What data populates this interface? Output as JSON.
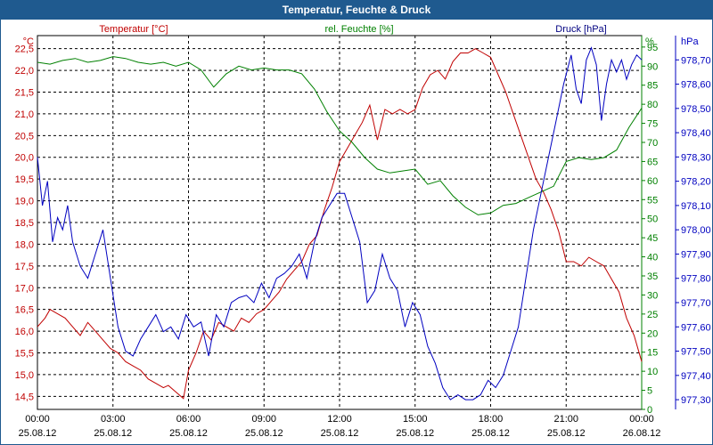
{
  "window": {
    "title": "Temperatur, Feuchte & Druck"
  },
  "chart_data": {
    "type": "line",
    "title": "Temperatur, Feuchte & Druck",
    "colors": {
      "temperature": "#c00000",
      "humidity": "#008000",
      "pressure": "#0000c0",
      "grid": "#000000"
    },
    "axes": {
      "temperature": {
        "label": "Temperatur [°C]",
        "unit": "°C",
        "ylim": [
          14.2,
          22.8
        ],
        "ticks": [
          "14,5",
          "15,0",
          "15,5",
          "16,0",
          "16,5",
          "17,0",
          "17,5",
          "18,0",
          "18,5",
          "19,0",
          "19,5",
          "20,0",
          "20,5",
          "21,0",
          "21,5",
          "22,0",
          "22,5"
        ]
      },
      "humidity": {
        "label": "rel. Feuchte [%]",
        "unit": "%",
        "ylim": [
          0,
          98
        ],
        "ticks": [
          "0",
          "5",
          "10",
          "15",
          "20",
          "25",
          "30",
          "35",
          "40",
          "45",
          "50",
          "55",
          "60",
          "65",
          "70",
          "75",
          "80",
          "85",
          "90",
          "95"
        ]
      },
      "pressure": {
        "label": "Druck [hPa]",
        "unit": "hPa",
        "ylim": [
          977.26,
          978.8
        ],
        "ticks": [
          "977,30",
          "977,40",
          "977,50",
          "977,60",
          "977,70",
          "977,80",
          "977,90",
          "978,00",
          "978,10",
          "978,20",
          "978,30",
          "978,40",
          "978,50",
          "978,60",
          "978,70"
        ]
      }
    },
    "x_ticks": [
      {
        "time": "00:00",
        "date": "25.08.12"
      },
      {
        "time": "03:00",
        "date": "25.08.12"
      },
      {
        "time": "06:00",
        "date": "25.08.12"
      },
      {
        "time": "09:00",
        "date": "25.08.12"
      },
      {
        "time": "12:00",
        "date": "25.08.12"
      },
      {
        "time": "15:00",
        "date": "25.08.12"
      },
      {
        "time": "18:00",
        "date": "25.08.12"
      },
      {
        "time": "21:00",
        "date": "25.08.12"
      },
      {
        "time": "00:00",
        "date": "26.08.12"
      }
    ],
    "xlim_hours": [
      0,
      24
    ],
    "series": [
      {
        "name": "Temperatur",
        "axis": "temperature",
        "points": [
          [
            0,
            16.1
          ],
          [
            0.3,
            16.3
          ],
          [
            0.5,
            16.5
          ],
          [
            0.8,
            16.4
          ],
          [
            1.1,
            16.3
          ],
          [
            1.4,
            16.1
          ],
          [
            1.7,
            15.9
          ],
          [
            2.0,
            16.2
          ],
          [
            2.3,
            16.0
          ],
          [
            2.6,
            15.8
          ],
          [
            2.9,
            15.6
          ],
          [
            3.2,
            15.5
          ],
          [
            3.5,
            15.3
          ],
          [
            3.8,
            15.2
          ],
          [
            4.1,
            15.1
          ],
          [
            4.4,
            14.9
          ],
          [
            4.7,
            14.8
          ],
          [
            5.0,
            14.7
          ],
          [
            5.2,
            14.75
          ],
          [
            5.5,
            14.6
          ],
          [
            5.8,
            14.45
          ],
          [
            6.0,
            15.1
          ],
          [
            6.3,
            15.5
          ],
          [
            6.6,
            16.0
          ],
          [
            6.9,
            15.8
          ],
          [
            7.2,
            16.2
          ],
          [
            7.5,
            16.1
          ],
          [
            7.8,
            16.0
          ],
          [
            8.1,
            16.3
          ],
          [
            8.4,
            16.2
          ],
          [
            8.7,
            16.4
          ],
          [
            9.0,
            16.5
          ],
          [
            9.3,
            16.7
          ],
          [
            9.6,
            16.9
          ],
          [
            9.9,
            17.2
          ],
          [
            10.2,
            17.4
          ],
          [
            10.5,
            17.6
          ],
          [
            10.8,
            18.0
          ],
          [
            11.1,
            18.2
          ],
          [
            11.4,
            18.8
          ],
          [
            11.7,
            19.3
          ],
          [
            12.0,
            19.9
          ],
          [
            12.3,
            20.2
          ],
          [
            12.6,
            20.5
          ],
          [
            12.9,
            20.8
          ],
          [
            13.2,
            21.2
          ],
          [
            13.5,
            20.4
          ],
          [
            13.8,
            21.1
          ],
          [
            14.1,
            21.0
          ],
          [
            14.4,
            21.1
          ],
          [
            14.7,
            21.0
          ],
          [
            15.0,
            21.1
          ],
          [
            15.3,
            21.6
          ],
          [
            15.6,
            21.9
          ],
          [
            15.9,
            22.0
          ],
          [
            16.2,
            21.8
          ],
          [
            16.5,
            22.2
          ],
          [
            16.8,
            22.4
          ],
          [
            17.1,
            22.4
          ],
          [
            17.4,
            22.5
          ],
          [
            17.7,
            22.4
          ],
          [
            18.0,
            22.3
          ],
          [
            18.3,
            21.9
          ],
          [
            18.6,
            21.5
          ],
          [
            18.9,
            21.0
          ],
          [
            19.2,
            20.5
          ],
          [
            19.5,
            20.0
          ],
          [
            19.8,
            19.5
          ],
          [
            20.1,
            19.2
          ],
          [
            20.4,
            18.8
          ],
          [
            20.7,
            18.3
          ],
          [
            21.0,
            17.6
          ],
          [
            21.3,
            17.6
          ],
          [
            21.6,
            17.5
          ],
          [
            21.9,
            17.7
          ],
          [
            22.2,
            17.6
          ],
          [
            22.5,
            17.5
          ],
          [
            22.8,
            17.2
          ],
          [
            23.1,
            16.9
          ],
          [
            23.4,
            16.3
          ],
          [
            23.7,
            15.9
          ],
          [
            24.0,
            15.3
          ]
        ]
      },
      {
        "name": "rel. Feuchte",
        "axis": "humidity",
        "points": [
          [
            0,
            91
          ],
          [
            0.5,
            90.5
          ],
          [
            1.0,
            91.5
          ],
          [
            1.5,
            92
          ],
          [
            2.0,
            91
          ],
          [
            2.5,
            91.5
          ],
          [
            3.0,
            92.5
          ],
          [
            3.5,
            92
          ],
          [
            4.0,
            91
          ],
          [
            4.5,
            90.5
          ],
          [
            5.0,
            91
          ],
          [
            5.5,
            90
          ],
          [
            6.0,
            91
          ],
          [
            6.5,
            89
          ],
          [
            7.0,
            84.5
          ],
          [
            7.5,
            88
          ],
          [
            8.0,
            90
          ],
          [
            8.5,
            89
          ],
          [
            9.0,
            89.5
          ],
          [
            9.5,
            89
          ],
          [
            10.0,
            89
          ],
          [
            10.5,
            88
          ],
          [
            11.0,
            84
          ],
          [
            11.5,
            78
          ],
          [
            12.0,
            73
          ],
          [
            12.5,
            70
          ],
          [
            13.0,
            66
          ],
          [
            13.5,
            63
          ],
          [
            14.0,
            62
          ],
          [
            14.5,
            62.5
          ],
          [
            15.0,
            63
          ],
          [
            15.5,
            59
          ],
          [
            16.0,
            60
          ],
          [
            16.5,
            56
          ],
          [
            17.0,
            53
          ],
          [
            17.5,
            51
          ],
          [
            18.0,
            51.5
          ],
          [
            18.5,
            53.5
          ],
          [
            19.0,
            54
          ],
          [
            19.5,
            55.5
          ],
          [
            20.0,
            57
          ],
          [
            20.5,
            58.5
          ],
          [
            21.0,
            65
          ],
          [
            21.5,
            66
          ],
          [
            22.0,
            65.5
          ],
          [
            22.5,
            66
          ],
          [
            23.0,
            68
          ],
          [
            23.5,
            74
          ],
          [
            24.0,
            79
          ]
        ]
      },
      {
        "name": "Druck",
        "axis": "pressure",
        "points": [
          [
            0,
            978.3
          ],
          [
            0.2,
            978.1
          ],
          [
            0.4,
            978.2
          ],
          [
            0.6,
            977.95
          ],
          [
            0.8,
            978.05
          ],
          [
            1.0,
            978.0
          ],
          [
            1.2,
            978.1
          ],
          [
            1.4,
            977.95
          ],
          [
            1.7,
            977.85
          ],
          [
            2.0,
            977.8
          ],
          [
            2.3,
            977.9
          ],
          [
            2.6,
            978.0
          ],
          [
            2.9,
            977.8
          ],
          [
            3.2,
            977.6
          ],
          [
            3.5,
            977.5
          ],
          [
            3.8,
            977.48
          ],
          [
            4.1,
            977.55
          ],
          [
            4.4,
            977.6
          ],
          [
            4.7,
            977.65
          ],
          [
            5.0,
            977.58
          ],
          [
            5.3,
            977.6
          ],
          [
            5.6,
            977.55
          ],
          [
            5.9,
            977.65
          ],
          [
            6.2,
            977.6
          ],
          [
            6.5,
            977.62
          ],
          [
            6.8,
            977.48
          ],
          [
            7.1,
            977.65
          ],
          [
            7.4,
            977.6
          ],
          [
            7.7,
            977.7
          ],
          [
            8.0,
            977.72
          ],
          [
            8.3,
            977.73
          ],
          [
            8.6,
            977.7
          ],
          [
            8.9,
            977.78
          ],
          [
            9.2,
            977.72
          ],
          [
            9.5,
            977.8
          ],
          [
            9.8,
            977.82
          ],
          [
            10.1,
            977.85
          ],
          [
            10.4,
            977.9
          ],
          [
            10.7,
            977.8
          ],
          [
            11.0,
            977.95
          ],
          [
            11.3,
            978.05
          ],
          [
            11.6,
            978.1
          ],
          [
            11.9,
            978.15
          ],
          [
            12.2,
            978.15
          ],
          [
            12.5,
            978.05
          ],
          [
            12.8,
            977.95
          ],
          [
            13.1,
            977.7
          ],
          [
            13.4,
            977.75
          ],
          [
            13.7,
            977.9
          ],
          [
            14.0,
            977.8
          ],
          [
            14.3,
            977.75
          ],
          [
            14.6,
            977.6
          ],
          [
            14.9,
            977.7
          ],
          [
            15.2,
            977.65
          ],
          [
            15.5,
            977.52
          ],
          [
            15.8,
            977.45
          ],
          [
            16.1,
            977.35
          ],
          [
            16.4,
            977.3
          ],
          [
            16.7,
            977.32
          ],
          [
            17.0,
            977.3
          ],
          [
            17.3,
            977.3
          ],
          [
            17.6,
            977.32
          ],
          [
            17.9,
            977.38
          ],
          [
            18.2,
            977.35
          ],
          [
            18.5,
            977.4
          ],
          [
            18.8,
            977.5
          ],
          [
            19.1,
            977.6
          ],
          [
            19.4,
            977.8
          ],
          [
            19.7,
            978.0
          ],
          [
            20.0,
            978.15
          ],
          [
            20.3,
            978.3
          ],
          [
            20.6,
            978.45
          ],
          [
            20.9,
            978.6
          ],
          [
            21.2,
            978.72
          ],
          [
            21.4,
            978.58
          ],
          [
            21.6,
            978.52
          ],
          [
            21.8,
            978.7
          ],
          [
            22.0,
            978.75
          ],
          [
            22.2,
            978.68
          ],
          [
            22.4,
            978.45
          ],
          [
            22.6,
            978.6
          ],
          [
            22.8,
            978.7
          ],
          [
            23.0,
            978.65
          ],
          [
            23.2,
            978.7
          ],
          [
            23.4,
            978.62
          ],
          [
            23.6,
            978.68
          ],
          [
            23.8,
            978.72
          ],
          [
            24.0,
            978.7
          ]
        ]
      }
    ]
  }
}
